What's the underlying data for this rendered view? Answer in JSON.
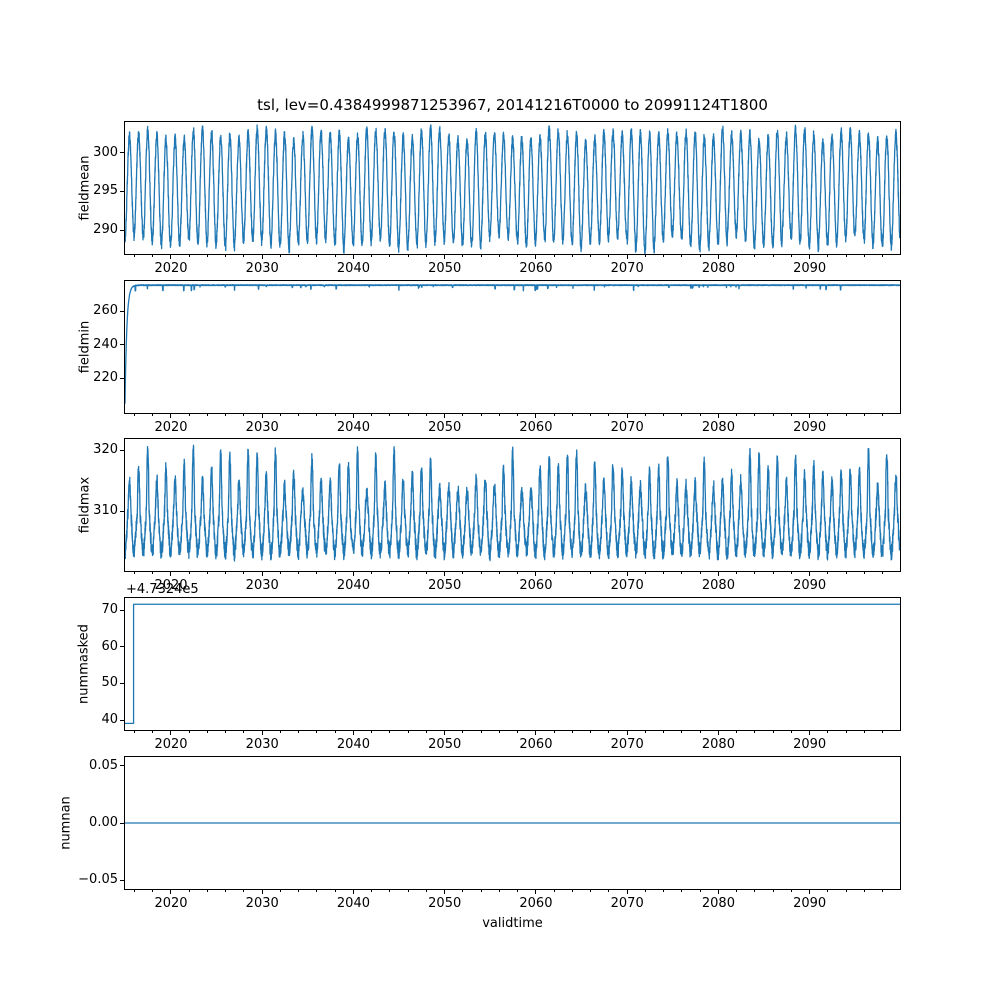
{
  "figure": {
    "title": "tsl, lev=0.4384999871253967, 20141216T0000 to 20991124T1800",
    "xlabel": "validtime",
    "background_color": "#ffffff",
    "line_color": "#1f77b4",
    "axis_color": "#000000",
    "x_range": [
      2014.96,
      2099.9
    ],
    "xticks": [
      2020,
      2030,
      2040,
      2050,
      2060,
      2070,
      2080,
      2090
    ],
    "xtick_labels": [
      "2020",
      "2030",
      "2040",
      "2050",
      "2060",
      "2070",
      "2080",
      "2090"
    ],
    "x_minor_step": 2,
    "grid": false,
    "legend": "none"
  },
  "chart_data": [
    {
      "type": "line",
      "name": "fieldmean",
      "ylabel": "fieldmean",
      "ylim": [
        286.9,
        304.0
      ],
      "yticks": [
        290,
        295,
        300
      ],
      "ytick_labels": [
        "290",
        "295",
        "300"
      ],
      "series": {
        "kind": "seasonal",
        "base": 295.4,
        "amplitude": 6.9,
        "amp_jitter": 0.08,
        "noise": 0.7,
        "slow_amp": 0.5,
        "slow_period": 6.5,
        "phase": 2015.2,
        "peak_boost_min": 0,
        "peak_boost_max": 0,
        "annual_max_approx": 303,
        "annual_min_approx": 288
      }
    },
    {
      "type": "line",
      "name": "fieldmin",
      "ylabel": "fieldmin",
      "ylim": [
        199.1,
        278.1
      ],
      "yticks": [
        220,
        240,
        260
      ],
      "ytick_labels": [
        "220",
        "240",
        "260"
      ],
      "series": {
        "kind": "spinup_flat",
        "start_value": 204.6,
        "flat": 275.6,
        "spinup_drop": 71,
        "spinup_tau": 0.2,
        "noise": 0.25,
        "dip_prob": 0.008,
        "dip_min": 0.8,
        "dip_max": 3.2
      }
    },
    {
      "type": "line",
      "name": "fieldmax",
      "ylabel": "fieldmax",
      "ylim": [
        300.2,
        321.8
      ],
      "yticks": [
        310,
        320
      ],
      "ytick_labels": [
        "310",
        "320"
      ],
      "series": {
        "kind": "seasonal",
        "base": 307.6,
        "amplitude": 4.3,
        "amp_jitter": 0.06,
        "noise": 1.3,
        "slow_amp": 0,
        "slow_period": 8,
        "phase": 2015.2,
        "peak_boost_min": 1,
        "peak_boost_max": 8,
        "annual_max_approx": 321,
        "annual_min_approx": 302
      }
    },
    {
      "type": "line",
      "name": "nummasked",
      "ylabel": "nummasked",
      "ylim": [
        37.3,
        73.3
      ],
      "yticks": [
        40,
        50,
        60,
        70
      ],
      "ytick_labels": [
        "40",
        "50",
        "60",
        "70"
      ],
      "offset_text": "+4.7324e5",
      "series": {
        "kind": "step",
        "before": 39.1,
        "after": 71.6,
        "step_year": 2015.9
      }
    },
    {
      "type": "line",
      "name": "numnan",
      "ylabel": "numnan",
      "ylim": [
        -0.0575,
        0.0575
      ],
      "yticks": [
        -0.05,
        0.0,
        0.05
      ],
      "ytick_labels": [
        "−0.05",
        "0.00",
        "0.05"
      ],
      "series": {
        "kind": "constant",
        "value": 0
      }
    }
  ]
}
